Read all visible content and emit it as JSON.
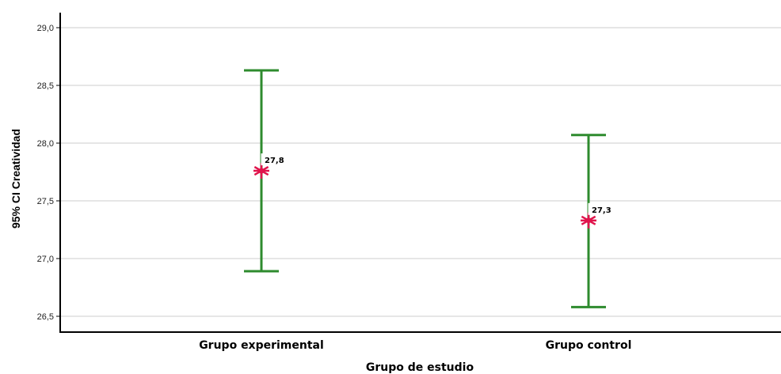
{
  "chart_data": {
    "type": "errorbar",
    "xlabel": "Grupo de estudio",
    "ylabel": "95% CI Creatividad",
    "ylim": [
      26.5,
      29.0
    ],
    "yticks": [
      "26,5",
      "27,0",
      "27,5",
      "28,0",
      "28,5",
      "29,0"
    ],
    "ytick_values": [
      26.5,
      27.0,
      27.5,
      28.0,
      28.5,
      29.0
    ],
    "grid": true,
    "categories": [
      "Grupo experimental",
      "Grupo control"
    ],
    "means": [
      27.76,
      27.33
    ],
    "lower": [
      26.89,
      26.58
    ],
    "upper": [
      28.63,
      28.07
    ],
    "data_labels": [
      "27,8",
      "27,3"
    ],
    "colors": {
      "bar": "#2e8b2e",
      "marker": "#e0144c",
      "grid": "#cccccc"
    }
  }
}
